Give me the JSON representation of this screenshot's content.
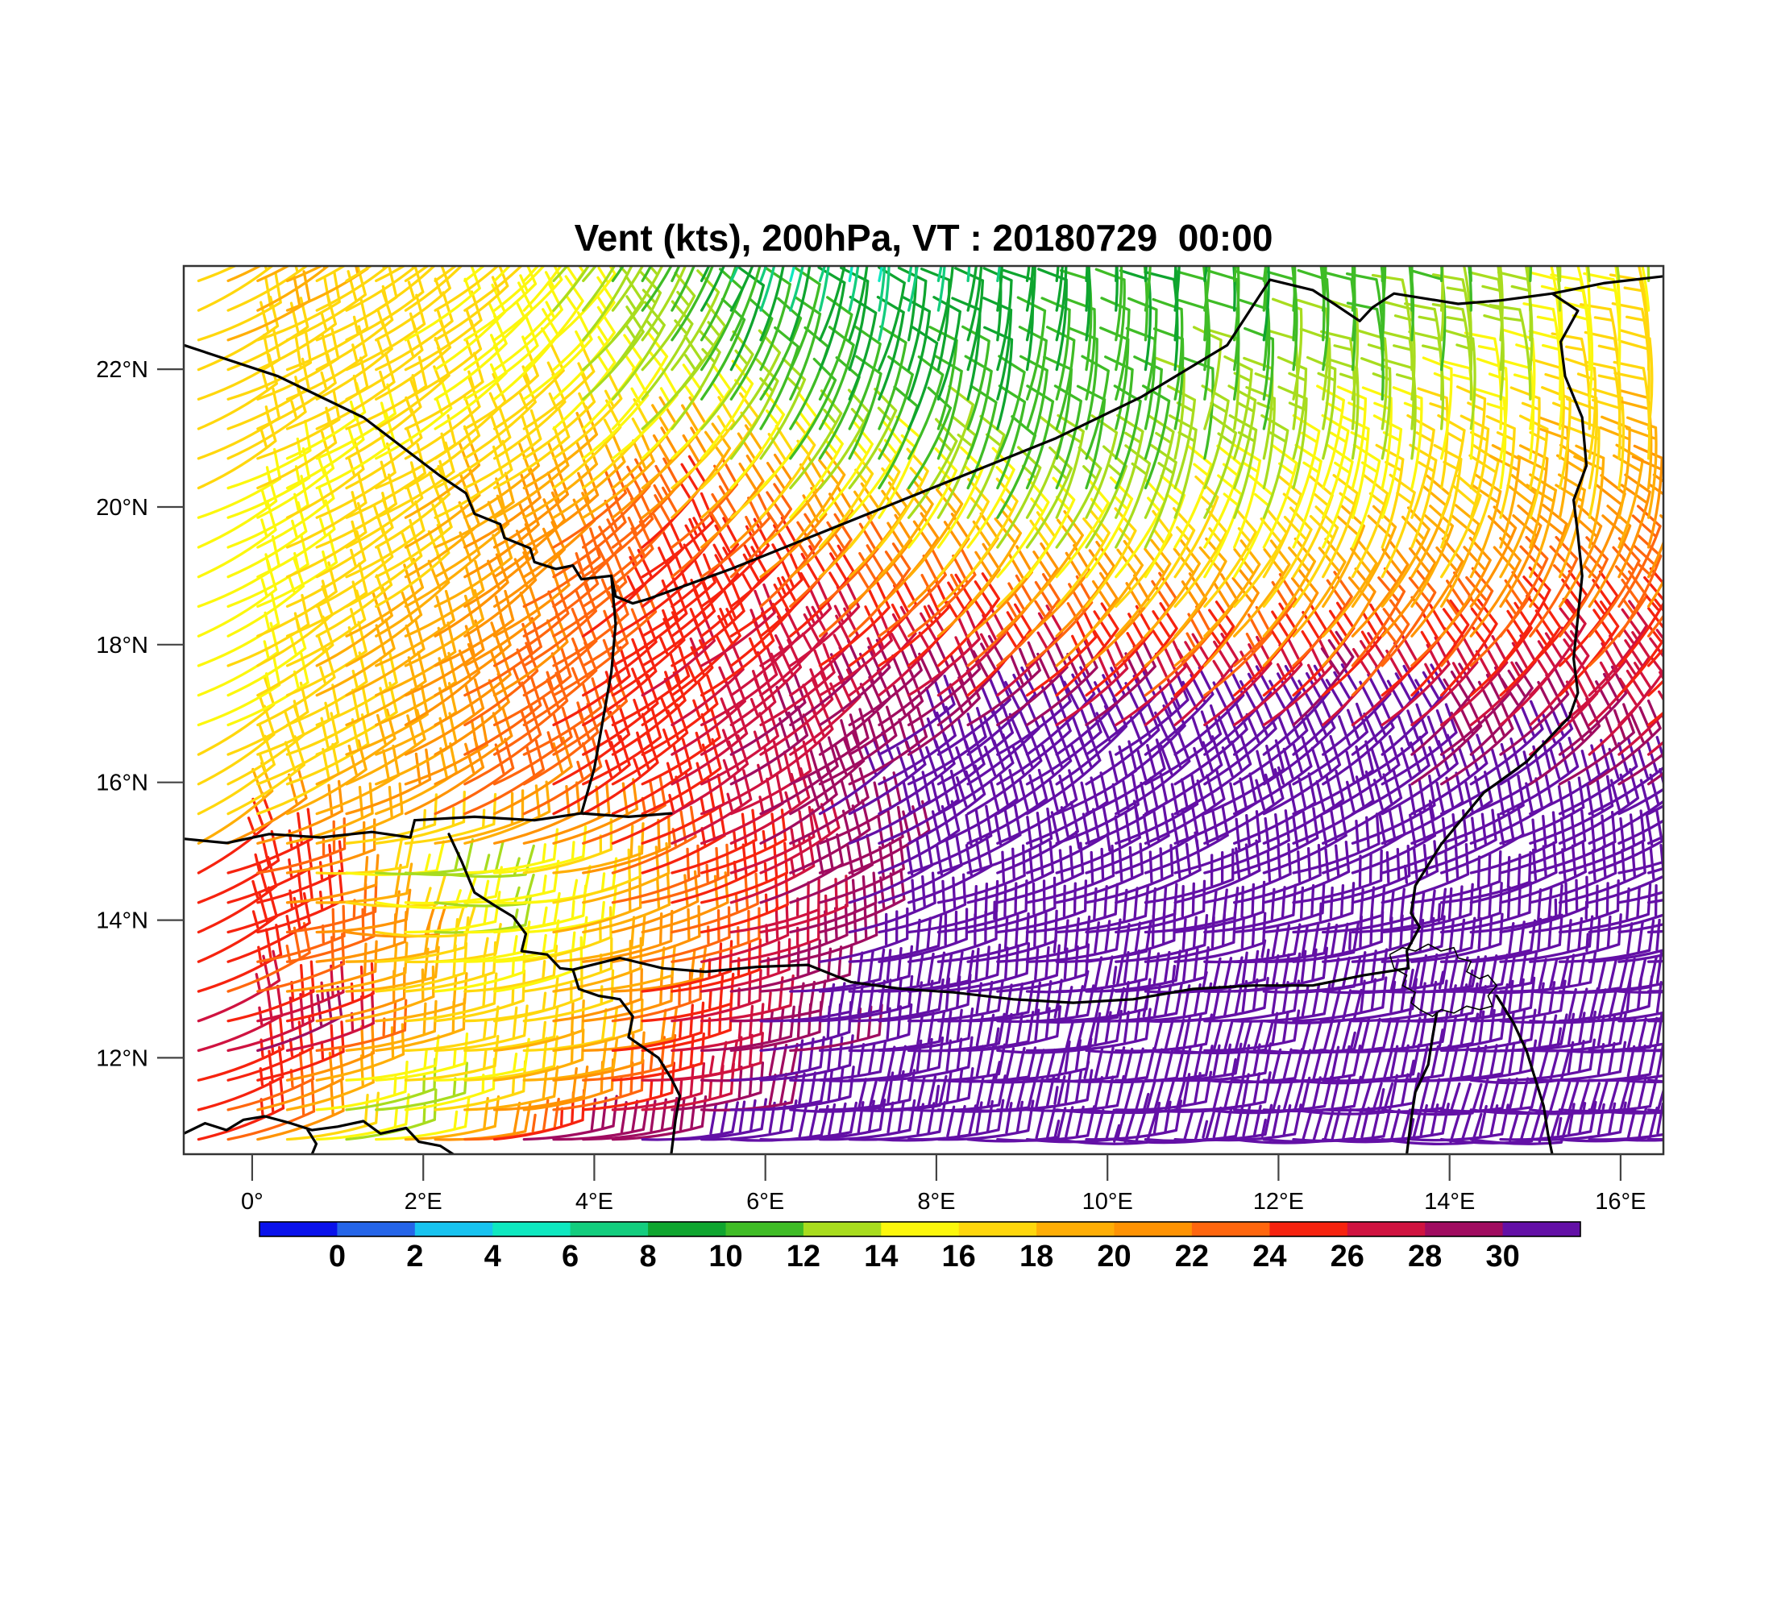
{
  "title": "Vent (kts), 200hPa, VT : 20180729  00:00",
  "chart_data": {
    "type": "wind_barbs",
    "title": "Vent (kts), 200hPa, VT : 20180729  00:00",
    "variable": "Vent",
    "units": "kts",
    "level": "200hPa",
    "valid_time": "20180729 00:00",
    "x_axis": {
      "lon_range": [
        -0.8,
        16.5
      ],
      "ticks": [
        {
          "lon": 0,
          "label": "0°"
        },
        {
          "lon": 2,
          "label": "2°E"
        },
        {
          "lon": 4,
          "label": "4°E"
        },
        {
          "lon": 6,
          "label": "6°E"
        },
        {
          "lon": 8,
          "label": "8°E"
        },
        {
          "lon": 10,
          "label": "10°E"
        },
        {
          "lon": 12,
          "label": "12°E"
        },
        {
          "lon": 14,
          "label": "14°E"
        },
        {
          "lon": 16,
          "label": "16°E"
        }
      ]
    },
    "y_axis": {
      "lat_range": [
        10.6,
        23.5
      ],
      "ticks": [
        {
          "lat": 12,
          "label": "12°N"
        },
        {
          "lat": 14,
          "label": "14°N"
        },
        {
          "lat": 16,
          "label": "16°N"
        },
        {
          "lat": 18,
          "label": "18°N"
        },
        {
          "lat": 20,
          "label": "20°N"
        },
        {
          "lat": 22,
          "label": "22°N"
        }
      ]
    },
    "colorbar": {
      "levels": [
        0,
        2,
        4,
        6,
        8,
        10,
        12,
        14,
        16,
        18,
        20,
        22,
        24,
        26,
        28,
        30
      ],
      "labels": [
        "0",
        "2",
        "4",
        "6",
        "8",
        "10",
        "12",
        "14",
        "16",
        "18",
        "20",
        "22",
        "24",
        "26",
        "28",
        "30"
      ],
      "colors": [
        "#0A12EB",
        "#2565E8",
        "#18C3F0",
        "#0FE8C0",
        "#13CD7E",
        "#0FA52F",
        "#3FBC26",
        "#A8DC1E",
        "#FCF70D",
        "#FFD70D",
        "#FFAE06",
        "#FF9303",
        "#FF660E",
        "#F6230F",
        "#CF1340",
        "#A00C60",
        "#6310A6"
      ]
    },
    "wind_field": {
      "control_lons": [
        -0.8,
        0.2,
        1.2,
        2.2,
        3.2,
        4.5,
        6,
        7.5,
        9,
        11,
        13,
        15,
        16.5
      ],
      "control_lats": [
        10.6,
        11.4,
        12.2,
        13,
        13.8,
        14.6,
        15.5,
        16.5,
        17.5,
        18.5,
        19.5,
        20.5,
        21.5,
        22.5,
        23.5
      ],
      "speed_kts": [
        [
          26,
          19,
          13,
          24,
          31,
          32,
          32,
          32,
          32,
          32,
          32,
          32,
          32
        ],
        [
          25,
          21,
          12,
          16,
          20,
          27,
          31,
          32,
          32,
          32,
          32,
          32,
          32
        ],
        [
          27,
          30,
          20,
          17,
          18,
          26,
          30,
          32,
          32,
          32,
          32,
          32,
          32
        ],
        [
          24,
          22,
          18,
          15,
          17,
          24,
          29,
          32,
          32,
          32,
          32,
          32,
          32
        ],
        [
          26,
          25,
          19,
          13,
          16,
          22,
          28,
          32,
          32,
          32,
          32,
          32,
          32
        ],
        [
          25,
          24,
          13,
          12,
          17,
          24,
          28,
          31,
          32,
          32,
          32,
          32,
          32
        ],
        [
          17,
          18,
          20,
          22,
          23,
          26,
          29,
          31,
          32,
          32,
          32,
          31,
          31
        ],
        [
          16,
          17,
          19,
          22,
          24,
          26,
          28,
          30,
          31,
          31,
          30,
          28,
          27
        ],
        [
          15,
          17,
          19,
          21,
          23,
          26,
          27,
          26,
          24,
          22,
          23,
          25,
          25
        ],
        [
          15,
          16,
          18,
          20,
          23,
          25,
          24,
          21,
          18,
          17,
          19,
          21,
          22
        ],
        [
          15,
          16,
          17,
          19,
          21,
          24,
          18,
          15,
          13,
          14,
          16,
          18,
          20
        ],
        [
          16,
          16,
          16,
          17,
          17,
          16,
          13,
          11,
          11,
          12,
          14,
          16,
          19
        ],
        [
          17,
          17,
          17,
          16,
          15,
          13,
          11,
          10,
          10,
          11,
          12,
          14,
          18
        ],
        [
          18,
          18,
          17,
          16,
          15,
          12,
          9,
          8,
          9,
          10,
          11,
          13,
          16
        ],
        [
          18,
          18,
          17,
          16,
          14,
          11,
          6,
          5,
          8,
          10,
          11,
          12,
          14
        ]
      ],
      "direction_from_deg": [
        [
          70,
          76,
          82,
          82,
          82,
          84,
          86,
          88,
          88,
          89,
          89,
          88,
          88
        ],
        [
          66,
          74,
          80,
          80,
          80,
          82,
          84,
          86,
          87,
          88,
          88,
          87,
          86
        ],
        [
          64,
          72,
          78,
          78,
          78,
          80,
          82,
          84,
          85,
          86,
          86,
          85,
          85
        ],
        [
          62,
          72,
          80,
          78,
          76,
          78,
          80,
          82,
          83,
          84,
          84,
          84,
          84
        ],
        [
          58,
          72,
          90,
          85,
          78,
          72,
          72,
          74,
          76,
          78,
          78,
          78,
          78
        ],
        [
          55,
          75,
          95,
          90,
          78,
          68,
          64,
          64,
          66,
          68,
          70,
          70,
          70
        ],
        [
          58,
          62,
          65,
          62,
          60,
          58,
          58,
          58,
          58,
          58,
          58,
          58,
          58
        ],
        [
          60,
          60,
          59,
          57,
          56,
          54,
          53,
          52,
          50,
          48,
          46,
          45,
          44
        ],
        [
          60,
          59,
          58,
          56,
          54,
          52,
          50,
          48,
          45,
          42,
          40,
          38,
          37
        ],
        [
          60,
          59,
          57,
          55,
          53,
          50,
          46,
          42,
          38,
          34,
          30,
          28,
          26
        ],
        [
          62,
          60,
          58,
          56,
          52,
          47,
          40,
          33,
          26,
          20,
          16,
          12,
          10
        ],
        [
          63,
          61,
          58,
          55,
          50,
          42,
          32,
          22,
          15,
          10,
          6,
          2,
          0
        ],
        [
          64,
          62,
          58,
          53,
          46,
          36,
          25,
          15,
          8,
          5,
          0,
          -3,
          -5
        ],
        [
          63,
          61,
          57,
          50,
          42,
          30,
          18,
          8,
          3,
          0,
          -3,
          -6,
          -8
        ],
        [
          62,
          60,
          55,
          48,
          38,
          25,
          10,
          2,
          0,
          -2,
          -5,
          -8,
          -10
        ]
      ]
    },
    "map": {
      "borders": [
        [
          [
            -0.8,
            22.35
          ],
          [
            0.3,
            21.9
          ],
          [
            1.3,
            21.3
          ],
          [
            2.2,
            20.45
          ],
          [
            2.5,
            20.2
          ],
          [
            2.6,
            19.9
          ],
          [
            2.9,
            19.75
          ],
          [
            2.95,
            19.55
          ],
          [
            3.25,
            19.4
          ],
          [
            3.3,
            19.2
          ],
          [
            3.55,
            19.1
          ],
          [
            3.75,
            19.15
          ],
          [
            3.85,
            18.95
          ],
          [
            4.2,
            19.0
          ],
          [
            4.25,
            18.7
          ],
          [
            4.45,
            18.6
          ],
          [
            4.62,
            18.66
          ]
        ],
        [
          [
            4.62,
            18.66
          ],
          [
            5.6,
            19.1
          ],
          [
            7.3,
            19.95
          ],
          [
            9.4,
            21.0
          ],
          [
            10.4,
            21.6
          ],
          [
            11.4,
            22.35
          ],
          [
            11.9,
            23.3
          ],
          [
            12.4,
            23.15
          ],
          [
            12.65,
            22.95
          ],
          [
            12.95,
            22.7
          ],
          [
            13.1,
            22.9
          ],
          [
            13.35,
            23.1
          ],
          [
            13.6,
            23.05
          ],
          [
            14.1,
            22.95
          ],
          [
            14.6,
            23.0
          ],
          [
            15.2,
            23.1
          ],
          [
            15.5,
            22.85
          ],
          [
            15.3,
            22.4
          ],
          [
            15.35,
            21.9
          ],
          [
            15.55,
            21.3
          ],
          [
            15.6,
            20.6
          ],
          [
            15.45,
            20.1
          ],
          [
            15.5,
            19.6
          ],
          [
            15.55,
            19.0
          ],
          [
            15.5,
            18.4
          ],
          [
            15.45,
            17.8
          ],
          [
            15.5,
            17.3
          ],
          [
            15.4,
            16.95
          ],
          [
            14.9,
            16.3
          ],
          [
            14.4,
            15.85
          ],
          [
            13.9,
            15.1
          ],
          [
            13.6,
            14.5
          ],
          [
            13.55,
            14.1
          ],
          [
            13.65,
            13.9
          ],
          [
            13.5,
            13.55
          ],
          [
            13.52,
            13.3
          ]
        ],
        [
          [
            15.2,
            23.1
          ],
          [
            15.8,
            23.25
          ],
          [
            16.5,
            23.35
          ]
        ],
        [
          [
            -0.8,
            15.18
          ],
          [
            -0.3,
            15.12
          ],
          [
            0.2,
            15.25
          ],
          [
            0.8,
            15.2
          ],
          [
            1.4,
            15.28
          ],
          [
            1.85,
            15.2
          ],
          [
            1.9,
            15.45
          ]
        ],
        [
          [
            1.9,
            15.45
          ],
          [
            2.6,
            15.5
          ],
          [
            3.3,
            15.45
          ],
          [
            3.85,
            15.55
          ],
          [
            4.4,
            15.5
          ],
          [
            4.9,
            15.55
          ]
        ],
        [
          [
            3.85,
            15.55
          ],
          [
            4.0,
            16.2
          ],
          [
            4.1,
            16.9
          ],
          [
            4.2,
            17.6
          ],
          [
            4.25,
            18.3
          ],
          [
            4.2,
            19.0
          ]
        ],
        [
          [
            2.3,
            15.25
          ],
          [
            2.45,
            14.85
          ],
          [
            2.6,
            14.4
          ],
          [
            2.85,
            14.2
          ],
          [
            3.05,
            14.05
          ],
          [
            3.2,
            13.8
          ],
          [
            3.15,
            13.55
          ],
          [
            3.45,
            13.5
          ],
          [
            3.6,
            13.3
          ],
          [
            3.75,
            13.28
          ],
          [
            3.82,
            13.0
          ],
          [
            4.05,
            12.9
          ],
          [
            4.3,
            12.85
          ],
          [
            4.45,
            12.6
          ],
          [
            4.4,
            12.3
          ],
          [
            4.75,
            12.0
          ],
          [
            4.9,
            11.7
          ],
          [
            5.0,
            11.45
          ],
          [
            4.95,
            11.1
          ],
          [
            4.9,
            10.6
          ]
        ],
        [
          [
            3.75,
            13.28
          ],
          [
            4.3,
            13.45
          ],
          [
            4.8,
            13.3
          ],
          [
            5.3,
            13.25
          ],
          [
            5.9,
            13.32
          ],
          [
            6.5,
            13.35
          ],
          [
            7.0,
            13.1
          ],
          [
            7.6,
            13.0
          ],
          [
            8.2,
            12.95
          ],
          [
            8.9,
            12.85
          ],
          [
            9.6,
            12.8
          ],
          [
            10.3,
            12.85
          ],
          [
            11.0,
            13.0
          ],
          [
            11.7,
            13.05
          ],
          [
            12.4,
            13.05
          ],
          [
            13.0,
            13.2
          ],
          [
            13.52,
            13.3
          ]
        ],
        [
          [
            13.85,
            12.65
          ],
          [
            13.8,
            12.3
          ],
          [
            13.75,
            11.9
          ],
          [
            13.6,
            11.5
          ],
          [
            13.55,
            11.1
          ],
          [
            13.5,
            10.6
          ]
        ],
        [
          [
            14.55,
            12.9
          ],
          [
            14.75,
            12.5
          ],
          [
            14.9,
            12.1
          ],
          [
            15.0,
            11.7
          ],
          [
            15.1,
            11.3
          ],
          [
            15.15,
            10.9
          ],
          [
            15.2,
            10.6
          ]
        ],
        [
          [
            -0.8,
            10.9
          ],
          [
            -0.55,
            11.05
          ],
          [
            -0.3,
            10.95
          ],
          [
            -0.1,
            11.1
          ],
          [
            0.15,
            11.15
          ],
          [
            0.45,
            11.05
          ],
          [
            0.7,
            10.95
          ],
          [
            1.0,
            11.0
          ],
          [
            1.3,
            11.08
          ],
          [
            1.5,
            10.9
          ],
          [
            1.8,
            10.98
          ],
          [
            1.95,
            10.78
          ],
          [
            2.2,
            10.72
          ],
          [
            2.35,
            10.6
          ]
        ],
        [
          [
            0.65,
            10.95
          ],
          [
            0.75,
            10.75
          ],
          [
            0.7,
            10.6
          ]
        ]
      ],
      "lake_chad": [
        [
          [
            13.3,
            13.5
          ],
          [
            13.45,
            13.6
          ],
          [
            13.6,
            13.55
          ],
          [
            13.75,
            13.65
          ],
          [
            13.9,
            13.55
          ],
          [
            14.05,
            13.6
          ],
          [
            14.1,
            13.45
          ],
          [
            14.25,
            13.4
          ],
          [
            14.2,
            13.25
          ],
          [
            14.35,
            13.15
          ],
          [
            14.45,
            13.2
          ],
          [
            14.55,
            13.05
          ],
          [
            14.45,
            12.9
          ],
          [
            14.5,
            12.75
          ],
          [
            14.35,
            12.7
          ],
          [
            14.2,
            12.75
          ],
          [
            14.05,
            12.65
          ],
          [
            13.9,
            12.7
          ],
          [
            13.8,
            12.6
          ],
          [
            13.65,
            12.7
          ],
          [
            13.55,
            12.8
          ],
          [
            13.6,
            12.95
          ],
          [
            13.45,
            13.05
          ],
          [
            13.5,
            13.2
          ],
          [
            13.35,
            13.3
          ],
          [
            13.3,
            13.5
          ]
        ]
      ]
    }
  }
}
